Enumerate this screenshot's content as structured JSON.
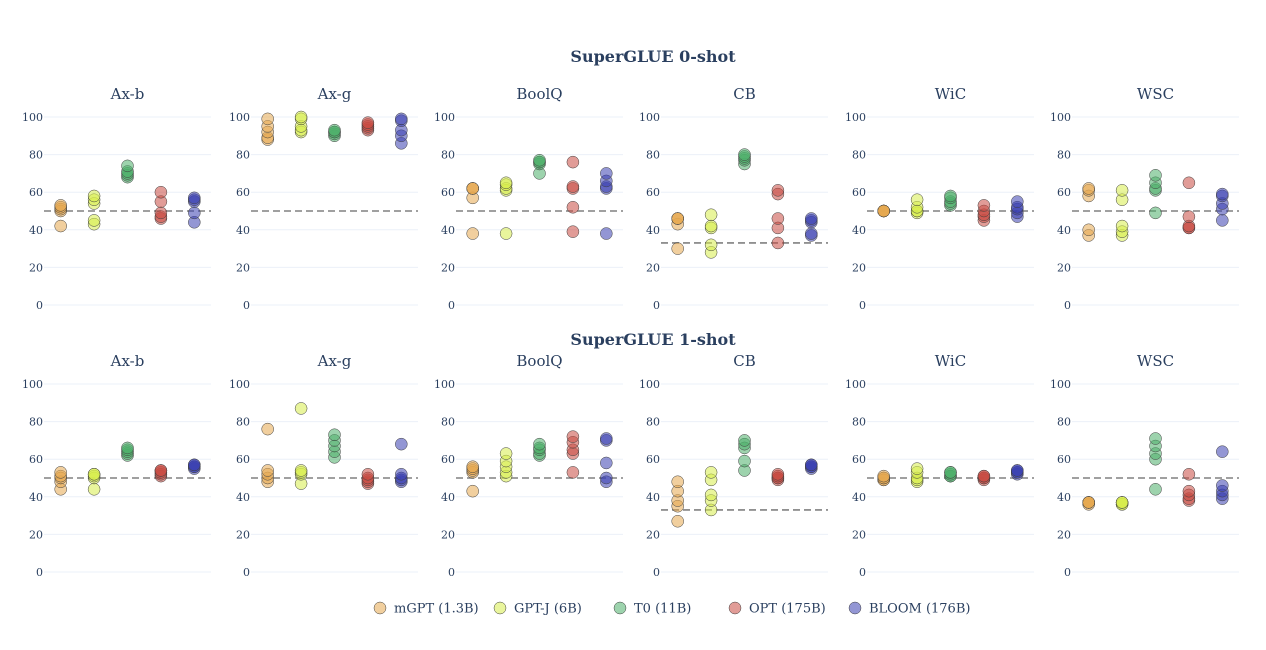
{
  "chart_data": {
    "type": "scatter",
    "legend_position": "bottom",
    "yticks": [
      0,
      20,
      40,
      60,
      80,
      100
    ],
    "ylim": [
      0,
      100
    ],
    "series": [
      {
        "name": "mGPT (1.3B)",
        "color": "#e6a84e"
      },
      {
        "name": "GPT-J (6B)",
        "color": "#d7ec4a"
      },
      {
        "name": "T0 (11B)",
        "color": "#4caf6a"
      },
      {
        "name": "OPT (175B)",
        "color": "#c94a41"
      },
      {
        "name": "BLOOM (176B)",
        "color": "#3b3fb0"
      }
    ],
    "rows": [
      {
        "title": "SuperGLUE 0-shot",
        "panels": [
          {
            "title": "Ax-b",
            "baseline": 50,
            "points": [
              [
                42,
                50,
                51,
                52,
                53
              ],
              [
                43,
                45,
                54,
                56,
                58
              ],
              [
                68,
                69,
                70,
                71,
                74
              ],
              [
                46,
                47,
                49,
                55,
                60
              ],
              [
                44,
                49,
                55,
                56,
                57
              ]
            ]
          },
          {
            "title": "Ax-g",
            "baseline": 50,
            "points": [
              [
                88,
                89,
                92,
                95,
                99
              ],
              [
                92,
                93,
                95,
                99,
                100
              ],
              [
                90,
                91,
                92,
                92,
                93
              ],
              [
                93,
                94,
                95,
                96,
                97
              ],
              [
                86,
                90,
                93,
                98,
                99
              ]
            ]
          },
          {
            "title": "BoolQ",
            "baseline": 50,
            "points": [
              [
                38,
                57,
                62,
                62,
                62
              ],
              [
                38,
                61,
                62,
                64,
                65
              ],
              [
                70,
                75,
                76,
                76,
                77
              ],
              [
                39,
                52,
                62,
                63,
                76
              ],
              [
                38,
                62,
                63,
                66,
                70
              ]
            ]
          },
          {
            "title": "CB",
            "baseline": 33,
            "points": [
              [
                30,
                43,
                46,
                46,
                46
              ],
              [
                28,
                32,
                41,
                42,
                48
              ],
              [
                75,
                77,
                78,
                79,
                80
              ],
              [
                33,
                41,
                46,
                59,
                61
              ],
              [
                37,
                38,
                44,
                45,
                46
              ]
            ]
          },
          {
            "title": "WiC",
            "baseline": 50,
            "points": [
              [
                50,
                50,
                50,
                50,
                50
              ],
              [
                49,
                50,
                50,
                52,
                56
              ],
              [
                53,
                54,
                55,
                57,
                58
              ],
              [
                45,
                47,
                48,
                50,
                53
              ],
              [
                47,
                49,
                51,
                52,
                55
              ]
            ]
          },
          {
            "title": "WSC",
            "baseline": 50,
            "points": [
              [
                37,
                40,
                58,
                61,
                62
              ],
              [
                37,
                39,
                42,
                56,
                61
              ],
              [
                49,
                61,
                62,
                65,
                69
              ],
              [
                41,
                41,
                42,
                47,
                65
              ],
              [
                45,
                51,
                54,
                58,
                59
              ]
            ]
          }
        ]
      },
      {
        "title": "SuperGLUE 1-shot",
        "panels": [
          {
            "title": "Ax-b",
            "baseline": 50,
            "points": [
              [
                44,
                48,
                50,
                51,
                53
              ],
              [
                44,
                50,
                51,
                52,
                52
              ],
              [
                62,
                63,
                64,
                65,
                66
              ],
              [
                51,
                52,
                53,
                54,
                54
              ],
              [
                55,
                56,
                56,
                57,
                57
              ]
            ]
          },
          {
            "title": "Ax-g",
            "baseline": 50,
            "points": [
              [
                48,
                50,
                52,
                54,
                76
              ],
              [
                47,
                52,
                53,
                54,
                87
              ],
              [
                61,
                64,
                67,
                70,
                73
              ],
              [
                47,
                48,
                49,
                50,
                52
              ],
              [
                48,
                49,
                50,
                52,
                68
              ]
            ]
          },
          {
            "title": "BoolQ",
            "baseline": 50,
            "points": [
              [
                43,
                53,
                54,
                55,
                56
              ],
              [
                51,
                53,
                56,
                59,
                63
              ],
              [
                62,
                63,
                65,
                66,
                68
              ],
              [
                53,
                63,
                65,
                69,
                72
              ],
              [
                48,
                50,
                58,
                70,
                71
              ]
            ]
          },
          {
            "title": "CB",
            "baseline": 33,
            "points": [
              [
                27,
                35,
                38,
                43,
                48
              ],
              [
                33,
                38,
                41,
                49,
                53
              ],
              [
                54,
                59,
                66,
                68,
                70
              ],
              [
                49,
                50,
                50,
                51,
                52
              ],
              [
                55,
                56,
                56,
                57,
                57
              ]
            ]
          },
          {
            "title": "WiC",
            "baseline": 50,
            "points": [
              [
                49,
                49,
                50,
                50,
                51
              ],
              [
                48,
                49,
                50,
                53,
                55
              ],
              [
                51,
                51,
                52,
                53,
                53
              ],
              [
                49,
                50,
                50,
                51,
                51
              ],
              [
                52,
                53,
                53,
                54,
                54
              ]
            ]
          },
          {
            "title": "WSC",
            "baseline": 50,
            "points": [
              [
                36,
                37,
                37,
                37,
                37
              ],
              [
                36,
                36,
                37,
                37,
                37
              ],
              [
                44,
                60,
                63,
                67,
                71
              ],
              [
                38,
                39,
                41,
                43,
                52
              ],
              [
                39,
                41,
                43,
                46,
                64
              ]
            ]
          }
        ]
      }
    ]
  }
}
